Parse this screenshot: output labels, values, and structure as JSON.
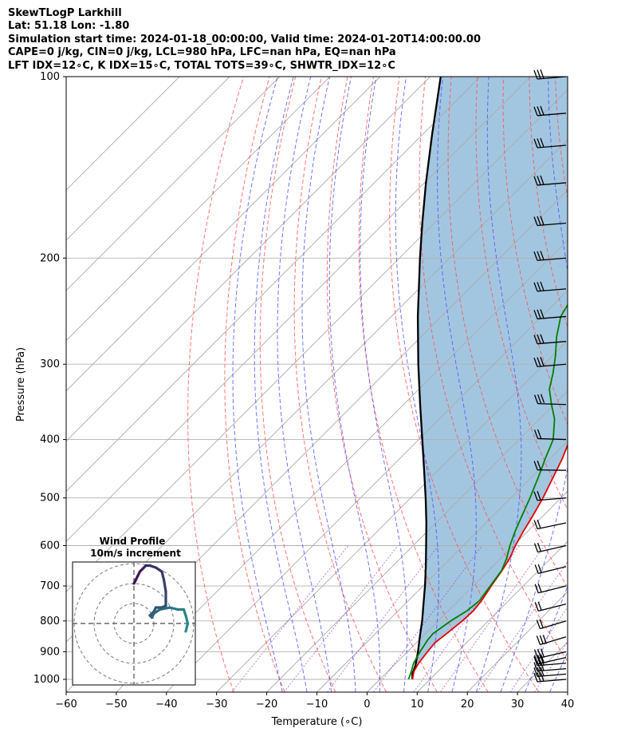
{
  "header": {
    "lines": [
      "SkewTLogP Larkhill",
      "Lat: 51.18   Lon: -1.80",
      "Simulation start time: 2024-01-18_00:00:00, Valid time: 2024-01-20T14:00:00.00",
      "CAPE=0 j/kg, CIN=0 j/kg, LCL=980 hPa, LFC=nan hPa, EQ=nan hPa",
      "LFT IDX=12∘C, K IDX=15∘C, TOTAL TOTS=39∘C, SHWTR_IDX=12∘C"
    ]
  },
  "chart_data": {
    "type": "skewt",
    "xlabel": "Temperature (∘C)",
    "ylabel": "Pressure (hPa)",
    "xlim": [
      -60,
      40
    ],
    "ylim": [
      1050,
      100
    ],
    "y_scale": "log",
    "x_ticks": [
      -60,
      -50,
      -40,
      -30,
      -20,
      -10,
      0,
      10,
      20,
      30,
      40
    ],
    "x_tick_labels": [
      "−60",
      "−50",
      "−40",
      "−30",
      "−20",
      "−10",
      "0",
      "10",
      "20",
      "30",
      "40"
    ],
    "y_ticks": [
      1000,
      900,
      800,
      700,
      600,
      500,
      400,
      300,
      200,
      100
    ],
    "y_tick_labels": [
      "1000",
      "900",
      "800",
      "700",
      "600",
      "500",
      "400",
      "300",
      "200",
      "100"
    ],
    "grid": true,
    "colors": {
      "temperature": "#e50000",
      "dewpoint": "#007f00",
      "parcel": "#000000",
      "cape_fill": "#a3c6e0",
      "dry_adiabats": "#ff4d4d",
      "moist_adiabats": "#4d4dff",
      "mixing_ratio": "#9b4dca",
      "isotherms": "#aaaaaa"
    },
    "temperature_profile": [
      [
        1000,
        6.5
      ],
      [
        970,
        5.2
      ],
      [
        940,
        4.5
      ],
      [
        900,
        4.0
      ],
      [
        870,
        3.7
      ],
      [
        840,
        4.2
      ],
      [
        800,
        4.8
      ],
      [
        770,
        5.0
      ],
      [
        740,
        4.6
      ],
      [
        700,
        3.6
      ],
      [
        660,
        2.7
      ],
      [
        630,
        1.8
      ],
      [
        600,
        0.4
      ],
      [
        570,
        -0.8
      ],
      [
        540,
        -1.9
      ],
      [
        500,
        -3.6
      ],
      [
        460,
        -5.8
      ],
      [
        430,
        -7.6
      ],
      [
        400,
        -9.9
      ],
      [
        370,
        -11.8
      ],
      [
        350,
        -13.2
      ],
      [
        330,
        -15.4
      ],
      [
        310,
        -18.1
      ],
      [
        290,
        -21.0
      ],
      [
        270,
        -23.9
      ],
      [
        250,
        -26.8
      ],
      [
        235,
        -28.9
      ],
      [
        220,
        -30.4
      ],
      [
        210,
        -30.9
      ],
      [
        200,
        -30.8
      ],
      [
        190,
        -30.3
      ],
      [
        180,
        -29.8
      ],
      [
        170,
        -29.2
      ],
      [
        160,
        -28.4
      ],
      [
        150,
        -28.0
      ],
      [
        140,
        -27.8
      ],
      [
        130,
        -26.5
      ],
      [
        120,
        -26.6
      ],
      [
        110,
        -27.7
      ],
      [
        100,
        -28.5
      ]
    ],
    "dewpoint_profile": [
      [
        1000,
        5.7
      ],
      [
        970,
        4.7
      ],
      [
        940,
        3.5
      ],
      [
        900,
        2.5
      ],
      [
        860,
        1.7
      ],
      [
        840,
        1.5
      ],
      [
        800,
        2.5
      ],
      [
        770,
        3.7
      ],
      [
        740,
        4.2
      ],
      [
        700,
        3.4
      ],
      [
        660,
        2.6
      ],
      [
        630,
        1.2
      ],
      [
        600,
        -0.7
      ],
      [
        570,
        -2.4
      ],
      [
        540,
        -4.0
      ],
      [
        500,
        -6.2
      ],
      [
        460,
        -8.8
      ],
      [
        430,
        -11.0
      ],
      [
        400,
        -13.2
      ],
      [
        370,
        -17.0
      ],
      [
        350,
        -20.5
      ],
      [
        330,
        -24.0
      ],
      [
        310,
        -26.5
      ],
      [
        290,
        -29.5
      ],
      [
        270,
        -33.0
      ],
      [
        250,
        -36.2
      ],
      [
        235,
        -37.5
      ],
      [
        220,
        -36.6
      ],
      [
        200,
        -36.1
      ],
      [
        190,
        -35.9
      ],
      [
        180,
        -36.6
      ],
      [
        170,
        -37.8
      ],
      [
        160,
        -39.8
      ],
      [
        150,
        -40.7
      ],
      [
        140,
        -40.5
      ],
      [
        130,
        -40.3
      ],
      [
        120,
        -40.1
      ],
      [
        110,
        -39.9
      ],
      [
        100,
        -39.7
      ]
    ],
    "parcel_profile": [
      [
        1000,
        6.5
      ],
      [
        980,
        5.4
      ],
      [
        950,
        4.4
      ],
      [
        900,
        2.1
      ],
      [
        850,
        -0.5
      ],
      [
        800,
        -3.2
      ],
      [
        750,
        -6.3
      ],
      [
        700,
        -9.6
      ],
      [
        650,
        -13.3
      ],
      [
        600,
        -17.4
      ],
      [
        550,
        -21.9
      ],
      [
        500,
        -27.0
      ],
      [
        450,
        -32.8
      ],
      [
        400,
        -39.3
      ],
      [
        350,
        -46.7
      ],
      [
        300,
        -55.1
      ],
      [
        250,
        -64.7
      ],
      [
        200,
        -75.9
      ],
      [
        175,
        -82.4
      ],
      [
        150,
        -89.7
      ],
      [
        125,
        -98.0
      ],
      [
        100,
        -107.9
      ]
    ],
    "wind_barbs": [
      [
        1000,
        25,
        90
      ],
      [
        980,
        25,
        90
      ],
      [
        960,
        25,
        90
      ],
      [
        940,
        25,
        90
      ],
      [
        920,
        30,
        80
      ],
      [
        900,
        30,
        80
      ],
      [
        850,
        25,
        65
      ],
      [
        800,
        20,
        65
      ],
      [
        750,
        15,
        75
      ],
      [
        700,
        20,
        75
      ],
      [
        650,
        20,
        75
      ],
      [
        600,
        20,
        80
      ],
      [
        550,
        20,
        85
      ],
      [
        500,
        20,
        90
      ],
      [
        450,
        20,
        95
      ],
      [
        400,
        20,
        100
      ],
      [
        350,
        25,
        100
      ],
      [
        300,
        30,
        90
      ],
      [
        275,
        30,
        90
      ],
      [
        250,
        30,
        90
      ],
      [
        225,
        30,
        90
      ],
      [
        200,
        30,
        90
      ],
      [
        175,
        30,
        90
      ],
      [
        150,
        30,
        90
      ],
      [
        130,
        30,
        90
      ],
      [
        115,
        30,
        90
      ],
      [
        100,
        30,
        90
      ]
    ],
    "hodograph": {
      "title": "Wind Profile",
      "subtitle": "10m/s increment",
      "ring_increment": 10,
      "points": [
        [
          26,
          -4
        ],
        [
          27,
          0
        ],
        [
          26,
          4
        ],
        [
          25,
          7
        ],
        [
          22,
          7
        ],
        [
          18,
          8
        ],
        [
          13,
          7
        ],
        [
          10,
          5
        ],
        [
          9,
          3
        ],
        [
          8,
          4
        ],
        [
          10,
          6
        ],
        [
          11,
          8
        ],
        [
          14,
          8
        ],
        [
          16,
          9
        ],
        [
          16,
          11
        ],
        [
          16,
          16
        ],
        [
          15,
          22
        ],
        [
          14,
          26
        ],
        [
          11,
          28
        ],
        [
          8,
          29
        ],
        [
          6,
          29
        ],
        [
          5,
          28
        ],
        [
          4,
          27
        ],
        [
          3,
          26
        ],
        [
          2,
          24
        ],
        [
          1,
          22
        ],
        [
          0,
          20
        ]
      ]
    }
  }
}
